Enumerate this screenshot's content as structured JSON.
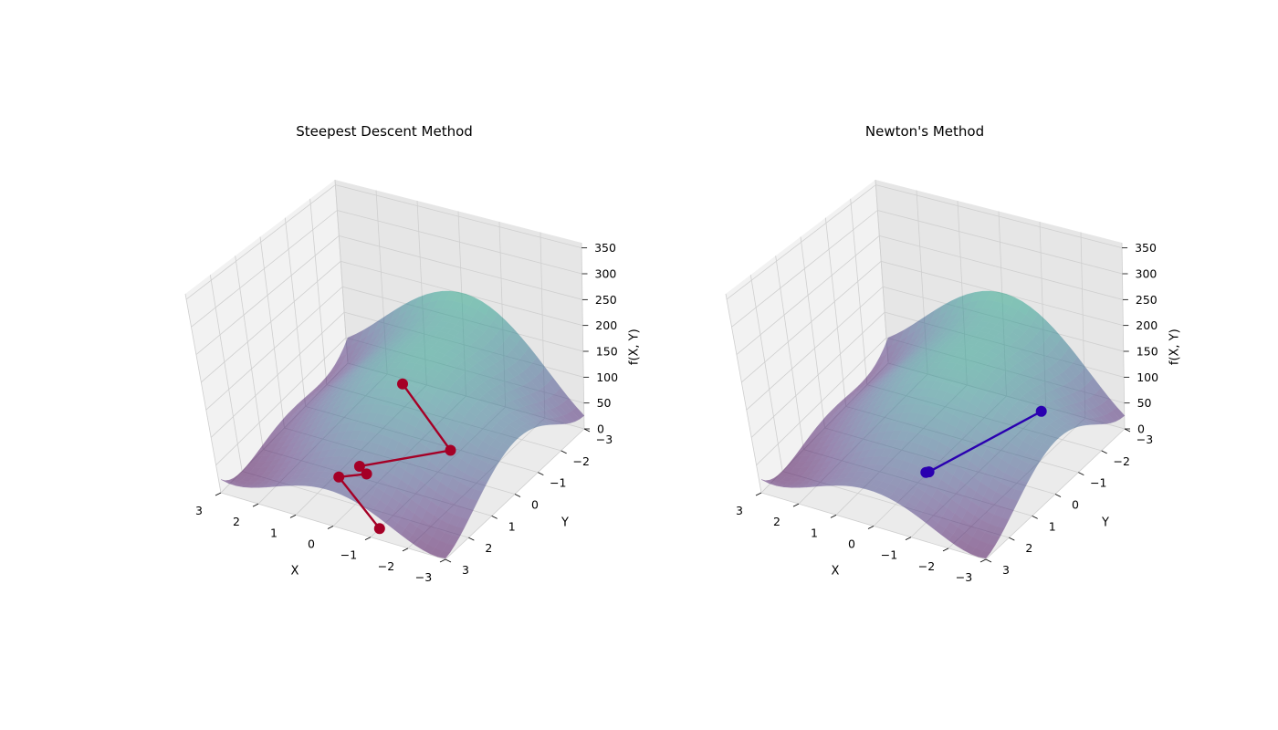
{
  "chart_data": [
    {
      "type": "surface3d",
      "title": "Steepest Descent Method",
      "xlabel": "X",
      "ylabel": "Y",
      "zlabel": "f(X, Y)",
      "xlim": [
        -3,
        3
      ],
      "ylim": [
        -3,
        3
      ],
      "zlim": [
        0,
        360
      ],
      "x_ticks": [
        "3",
        "2",
        "1",
        "0",
        "−1",
        "−2",
        "−3"
      ],
      "y_ticks": [
        "−3",
        "−2",
        "−1",
        "0",
        "1",
        "2",
        "3"
      ],
      "z_ticks": [
        "0",
        "50",
        "100",
        "150",
        "200",
        "250",
        "300",
        "350"
      ],
      "grid": true,
      "colormap": "viridis",
      "surface_alpha": 0.5,
      "path_color": "#a50026",
      "path": [
        {
          "x": 1.5,
          "y": -2.8,
          "z": 0
        },
        {
          "x": -0.8,
          "y": -0.9,
          "z": 0
        },
        {
          "x": 0.7,
          "y": 0.6,
          "z": 0
        },
        {
          "x": 0.4,
          "y": 0.8,
          "z": 0
        },
        {
          "x": 0.9,
          "y": 1.2,
          "z": 0
        },
        {
          "x": -1.0,
          "y": 2.6,
          "z": 0
        }
      ]
    },
    {
      "type": "surface3d",
      "title": "Newton's Method",
      "xlabel": "X",
      "ylabel": "Y",
      "zlabel": "f(X, Y)",
      "xlim": [
        -3,
        3
      ],
      "ylim": [
        -3,
        3
      ],
      "zlim": [
        0,
        360
      ],
      "x_ticks": [
        "3",
        "2",
        "1",
        "0",
        "−1",
        "−2",
        "−3"
      ],
      "y_ticks": [
        "−3",
        "−2",
        "−1",
        "0",
        "1",
        "2",
        "3"
      ],
      "z_ticks": [
        "0",
        "50",
        "100",
        "150",
        "200",
        "250",
        "300",
        "350"
      ],
      "grid": true,
      "colormap": "viridis",
      "surface_alpha": 0.5,
      "path_color": "#2a00b0",
      "path": [
        {
          "x": -1.0,
          "y": -2.8,
          "z": 0
        },
        {
          "x": 0.0,
          "y": 0.5,
          "z": 0
        },
        {
          "x": 0.05,
          "y": 0.55,
          "z": 0
        }
      ]
    }
  ]
}
